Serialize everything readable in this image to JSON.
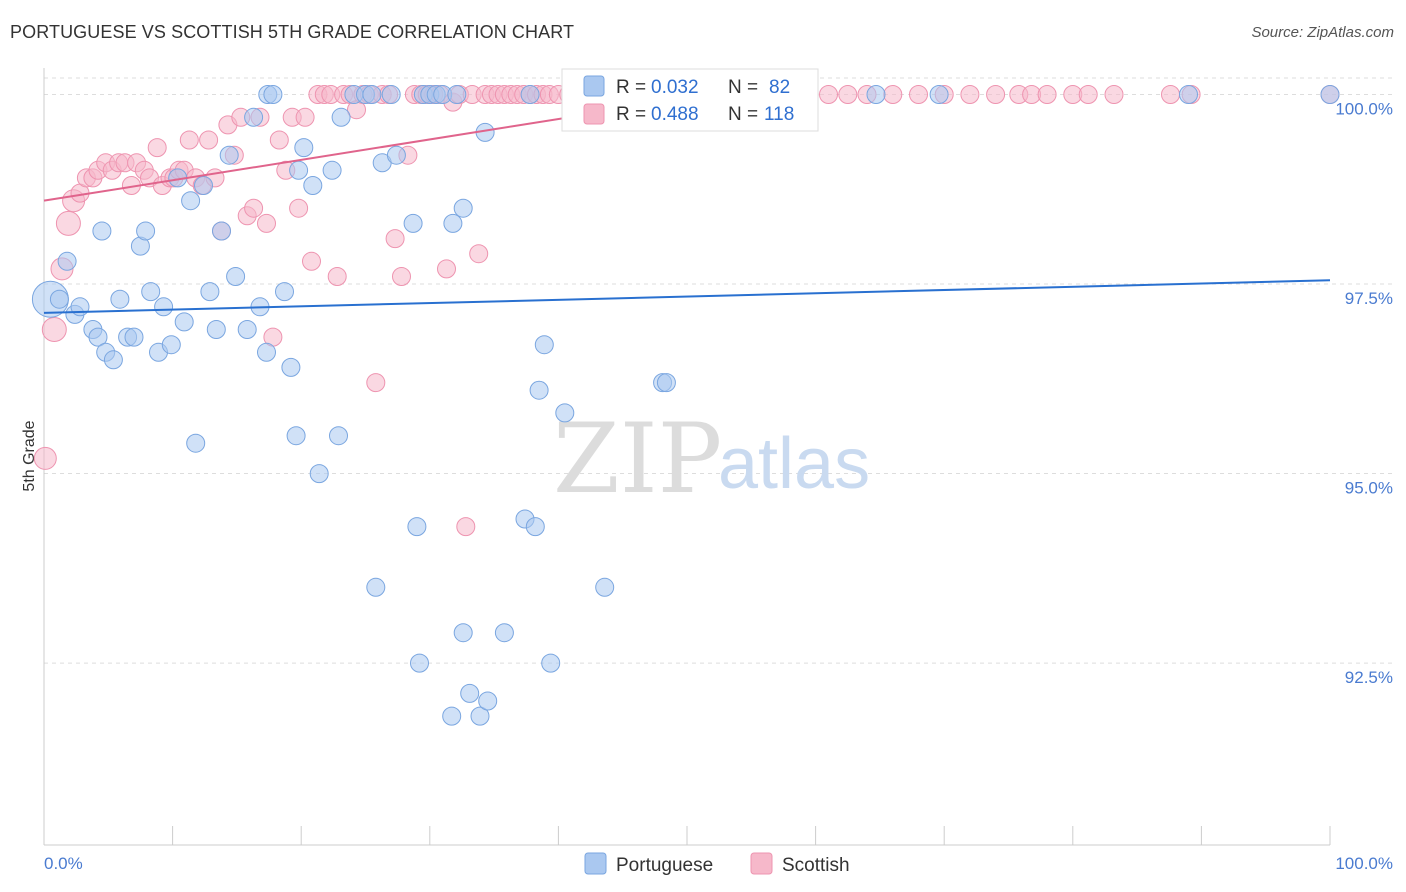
{
  "header": {
    "title": "PORTUGUESE VS SCOTTISH 5TH GRADE CORRELATION CHART",
    "source": "Source: ZipAtlas.com"
  },
  "watermark": {
    "zip": "ZIP",
    "atlas": "atlas"
  },
  "colors": {
    "portuguese_fill": "#aac8f0",
    "portuguese_stroke": "#7aa6e0",
    "portuguese_line": "#2970d0",
    "scottish_fill": "#f6b8ca",
    "scottish_stroke": "#ee94b0",
    "scottish_line": "#e0648c",
    "value_text": "#2f6fd0",
    "grid": "#dddddd"
  },
  "legend": {
    "rows": [
      {
        "r_label": "R = ",
        "r_value": "0.032",
        "n_label": "N = ",
        "n_value": "82"
      },
      {
        "r_label": "R = ",
        "r_value": "0.488",
        "n_label": "N = ",
        "n_value": "118"
      }
    ]
  },
  "bottom_legend": {
    "portuguese": "Portuguese",
    "scottish": "Scottish"
  },
  "chart_data": {
    "type": "scatter",
    "title": "PORTUGUESE VS SCOTTISH 5TH GRADE CORRELATION CHART",
    "xlabel": "",
    "ylabel": "5th Grade",
    "xlim": [
      0,
      100
    ],
    "ylim": [
      90.1,
      100.35
    ],
    "x_tick_labels": [
      "0.0%",
      "100.0%"
    ],
    "y_ticks": [
      {
        "value": 100.0,
        "label": "100.0%"
      },
      {
        "value": 97.5,
        "label": "97.5%"
      },
      {
        "value": 95.0,
        "label": "95.0%"
      },
      {
        "value": 92.5,
        "label": "92.5%"
      }
    ],
    "grid": "horizontal dashed",
    "legend_position": "top-center",
    "series": [
      {
        "name": "Portuguese",
        "r": 0.032,
        "n": 82,
        "trend": {
          "x": [
            0,
            100
          ],
          "y": [
            97.12,
            97.55
          ]
        },
        "points": [
          [
            0.5,
            97.3,
            18
          ],
          [
            1.8,
            97.8,
            9
          ],
          [
            1.2,
            97.3,
            9
          ],
          [
            2.4,
            97.1,
            9
          ],
          [
            2.8,
            97.2,
            9
          ],
          [
            3.8,
            96.9,
            9
          ],
          [
            4.2,
            96.8,
            9
          ],
          [
            4.5,
            98.2,
            9
          ],
          [
            4.8,
            96.6,
            9
          ],
          [
            5.4,
            96.5,
            9
          ],
          [
            5.9,
            97.3,
            9
          ],
          [
            6.5,
            96.8,
            9
          ],
          [
            7.0,
            96.8,
            9
          ],
          [
            7.5,
            98.0,
            9
          ],
          [
            7.9,
            98.2,
            9
          ],
          [
            8.3,
            97.4,
            9
          ],
          [
            8.9,
            96.6,
            9
          ],
          [
            9.3,
            97.2,
            9
          ],
          [
            9.9,
            96.7,
            9
          ],
          [
            10.4,
            98.9,
            9
          ],
          [
            10.9,
            97.0,
            9
          ],
          [
            11.4,
            98.6,
            9
          ],
          [
            11.8,
            95.4,
            9
          ],
          [
            12.4,
            98.8,
            9
          ],
          [
            12.9,
            97.4,
            9
          ],
          [
            13.4,
            96.9,
            9
          ],
          [
            13.8,
            98.2,
            9
          ],
          [
            14.4,
            99.2,
            9
          ],
          [
            14.9,
            97.6,
            9
          ],
          [
            15.8,
            96.9,
            9
          ],
          [
            16.3,
            99.7,
            9
          ],
          [
            16.8,
            97.2,
            9
          ],
          [
            17.3,
            96.6,
            9
          ],
          [
            17.4,
            100.0,
            9
          ],
          [
            17.8,
            100.0,
            9
          ],
          [
            18.7,
            97.4,
            9
          ],
          [
            19.2,
            96.4,
            9
          ],
          [
            19.6,
            95.5,
            9
          ],
          [
            19.8,
            99.0,
            9
          ],
          [
            20.2,
            99.3,
            9
          ],
          [
            20.9,
            98.8,
            9
          ],
          [
            21.4,
            95.0,
            9
          ],
          [
            22.4,
            99.0,
            9
          ],
          [
            22.9,
            95.5,
            9
          ],
          [
            23.1,
            99.7,
            9
          ],
          [
            24.1,
            100.0,
            9
          ],
          [
            25.0,
            100.0,
            9
          ],
          [
            25.5,
            100.0,
            9
          ],
          [
            25.8,
            93.5,
            9
          ],
          [
            26.3,
            99.1,
            9
          ],
          [
            27.0,
            100.0,
            9
          ],
          [
            27.4,
            99.2,
            9
          ],
          [
            28.7,
            98.3,
            9
          ],
          [
            29.0,
            94.3,
            9
          ],
          [
            29.2,
            92.5,
            9
          ],
          [
            29.5,
            100.0,
            9
          ],
          [
            30.0,
            100.0,
            9
          ],
          [
            30.5,
            100.0,
            9
          ],
          [
            31.0,
            100.0,
            9
          ],
          [
            31.7,
            91.8,
            9
          ],
          [
            31.8,
            98.3,
            9
          ],
          [
            32.1,
            100.0,
            9
          ],
          [
            32.6,
            98.5,
            9
          ],
          [
            32.6,
            92.9,
            9
          ],
          [
            33.1,
            92.1,
            9
          ],
          [
            33.9,
            91.8,
            9
          ],
          [
            34.3,
            99.5,
            9
          ],
          [
            34.5,
            92.0,
            9
          ],
          [
            35.8,
            92.9,
            9
          ],
          [
            37.4,
            94.4,
            9
          ],
          [
            37.8,
            100.0,
            9
          ],
          [
            38.2,
            94.3,
            9
          ],
          [
            38.5,
            96.1,
            9
          ],
          [
            38.9,
            96.7,
            9
          ],
          [
            39.4,
            92.5,
            9
          ],
          [
            40.5,
            95.8,
            9
          ],
          [
            43.6,
            93.5,
            9
          ],
          [
            48.1,
            96.2,
            9
          ],
          [
            48.4,
            96.2,
            9
          ],
          [
            64.7,
            100.0,
            9
          ],
          [
            69.6,
            100.0,
            9
          ],
          [
            89.0,
            100.0,
            9
          ],
          [
            100.0,
            100.0,
            9
          ]
        ]
      },
      {
        "name": "Scottish",
        "r": 0.488,
        "n": 118,
        "trend": {
          "x": [
            0,
            52
          ],
          "y": [
            98.6,
            100.0
          ]
        },
        "points": [
          [
            0.1,
            95.2,
            11
          ],
          [
            0.8,
            96.9,
            12
          ],
          [
            1.4,
            97.7,
            11
          ],
          [
            1.9,
            98.3,
            12
          ],
          [
            2.3,
            98.6,
            11
          ],
          [
            2.8,
            98.7,
            9
          ],
          [
            3.3,
            98.9,
            9
          ],
          [
            3.8,
            98.9,
            9
          ],
          [
            4.2,
            99.0,
            9
          ],
          [
            4.8,
            99.1,
            9
          ],
          [
            5.3,
            99.0,
            9
          ],
          [
            5.8,
            99.1,
            9
          ],
          [
            6.3,
            99.1,
            9
          ],
          [
            6.8,
            98.8,
            9
          ],
          [
            7.2,
            99.1,
            9
          ],
          [
            7.8,
            99.0,
            9
          ],
          [
            8.2,
            98.9,
            9
          ],
          [
            8.8,
            99.3,
            9
          ],
          [
            9.2,
            98.8,
            9
          ],
          [
            9.8,
            98.9,
            9
          ],
          [
            10.1,
            98.9,
            9
          ],
          [
            10.5,
            99.0,
            9
          ],
          [
            10.9,
            99.0,
            9
          ],
          [
            11.3,
            99.4,
            9
          ],
          [
            11.8,
            98.9,
            9
          ],
          [
            12.3,
            98.8,
            9
          ],
          [
            12.8,
            99.4,
            9
          ],
          [
            13.3,
            98.9,
            9
          ],
          [
            13.8,
            98.2,
            9
          ],
          [
            14.3,
            99.6,
            9
          ],
          [
            14.8,
            99.2,
            9
          ],
          [
            15.3,
            99.7,
            9
          ],
          [
            15.8,
            98.4,
            9
          ],
          [
            16.3,
            98.5,
            9
          ],
          [
            16.8,
            99.7,
            9
          ],
          [
            17.3,
            98.3,
            9
          ],
          [
            17.8,
            96.8,
            9
          ],
          [
            18.3,
            99.4,
            9
          ],
          [
            18.8,
            99.0,
            9
          ],
          [
            19.3,
            99.7,
            9
          ],
          [
            19.8,
            98.5,
            9
          ],
          [
            20.3,
            99.7,
            9
          ],
          [
            20.8,
            97.8,
            9
          ],
          [
            21.3,
            100.0,
            9
          ],
          [
            21.8,
            100.0,
            9
          ],
          [
            22.3,
            100.0,
            9
          ],
          [
            22.8,
            97.6,
            9
          ],
          [
            23.3,
            100.0,
            9
          ],
          [
            23.8,
            100.0,
            9
          ],
          [
            24.3,
            99.8,
            9
          ],
          [
            24.8,
            100.0,
            9
          ],
          [
            25.3,
            100.0,
            9
          ],
          [
            25.8,
            96.2,
            9
          ],
          [
            26.3,
            100.0,
            9
          ],
          [
            26.8,
            100.0,
            9
          ],
          [
            27.3,
            98.1,
            9
          ],
          [
            27.8,
            97.6,
            9
          ],
          [
            28.3,
            99.2,
            9
          ],
          [
            28.8,
            100.0,
            9
          ],
          [
            29.3,
            100.0,
            9
          ],
          [
            29.8,
            100.0,
            9
          ],
          [
            30.3,
            100.0,
            9
          ],
          [
            30.8,
            100.0,
            9
          ],
          [
            31.3,
            97.7,
            9
          ],
          [
            31.8,
            99.9,
            9
          ],
          [
            32.3,
            100.0,
            9
          ],
          [
            32.8,
            94.3,
            9
          ],
          [
            33.3,
            100.0,
            9
          ],
          [
            33.8,
            97.9,
            9
          ],
          [
            34.3,
            100.0,
            9
          ],
          [
            34.8,
            100.0,
            9
          ],
          [
            35.3,
            100.0,
            9
          ],
          [
            35.8,
            100.0,
            9
          ],
          [
            36.3,
            100.0,
            9
          ],
          [
            36.8,
            100.0,
            9
          ],
          [
            37.3,
            100.0,
            9
          ],
          [
            37.8,
            100.0,
            9
          ],
          [
            38.3,
            100.0,
            9
          ],
          [
            38.8,
            100.0,
            9
          ],
          [
            39.3,
            100.0,
            9
          ],
          [
            40.0,
            100.0,
            9
          ],
          [
            40.8,
            100.0,
            9
          ],
          [
            41.6,
            100.0,
            9
          ],
          [
            42.4,
            100.0,
            9
          ],
          [
            43.2,
            100.0,
            9
          ],
          [
            44.0,
            100.0,
            9
          ],
          [
            44.8,
            100.0,
            9
          ],
          [
            45.6,
            100.0,
            9
          ],
          [
            46.4,
            100.0,
            9
          ],
          [
            47.2,
            100.0,
            9
          ],
          [
            48.0,
            100.0,
            9
          ],
          [
            48.8,
            100.0,
            9
          ],
          [
            49.6,
            100.0,
            9
          ],
          [
            50.4,
            100.0,
            9
          ],
          [
            51.2,
            100.0,
            9
          ],
          [
            52.0,
            100.0,
            9
          ],
          [
            53.5,
            100.0,
            9
          ],
          [
            55.0,
            100.0,
            9
          ],
          [
            56.5,
            100.0,
            9
          ],
          [
            58.0,
            100.0,
            9
          ],
          [
            59.5,
            100.0,
            9
          ],
          [
            61.0,
            100.0,
            9
          ],
          [
            62.5,
            100.0,
            9
          ],
          [
            64.0,
            100.0,
            9
          ],
          [
            66.0,
            100.0,
            9
          ],
          [
            68.0,
            100.0,
            9
          ],
          [
            70.0,
            100.0,
            9
          ],
          [
            72.0,
            100.0,
            9
          ],
          [
            74.0,
            100.0,
            9
          ],
          [
            75.8,
            100.0,
            9
          ],
          [
            76.8,
            100.0,
            9
          ],
          [
            78.0,
            100.0,
            9
          ],
          [
            80.0,
            100.0,
            9
          ],
          [
            81.2,
            100.0,
            9
          ],
          [
            83.2,
            100.0,
            9
          ],
          [
            87.6,
            100.0,
            9
          ],
          [
            89.2,
            100.0,
            9
          ],
          [
            100.0,
            100.0,
            9
          ]
        ]
      }
    ]
  }
}
